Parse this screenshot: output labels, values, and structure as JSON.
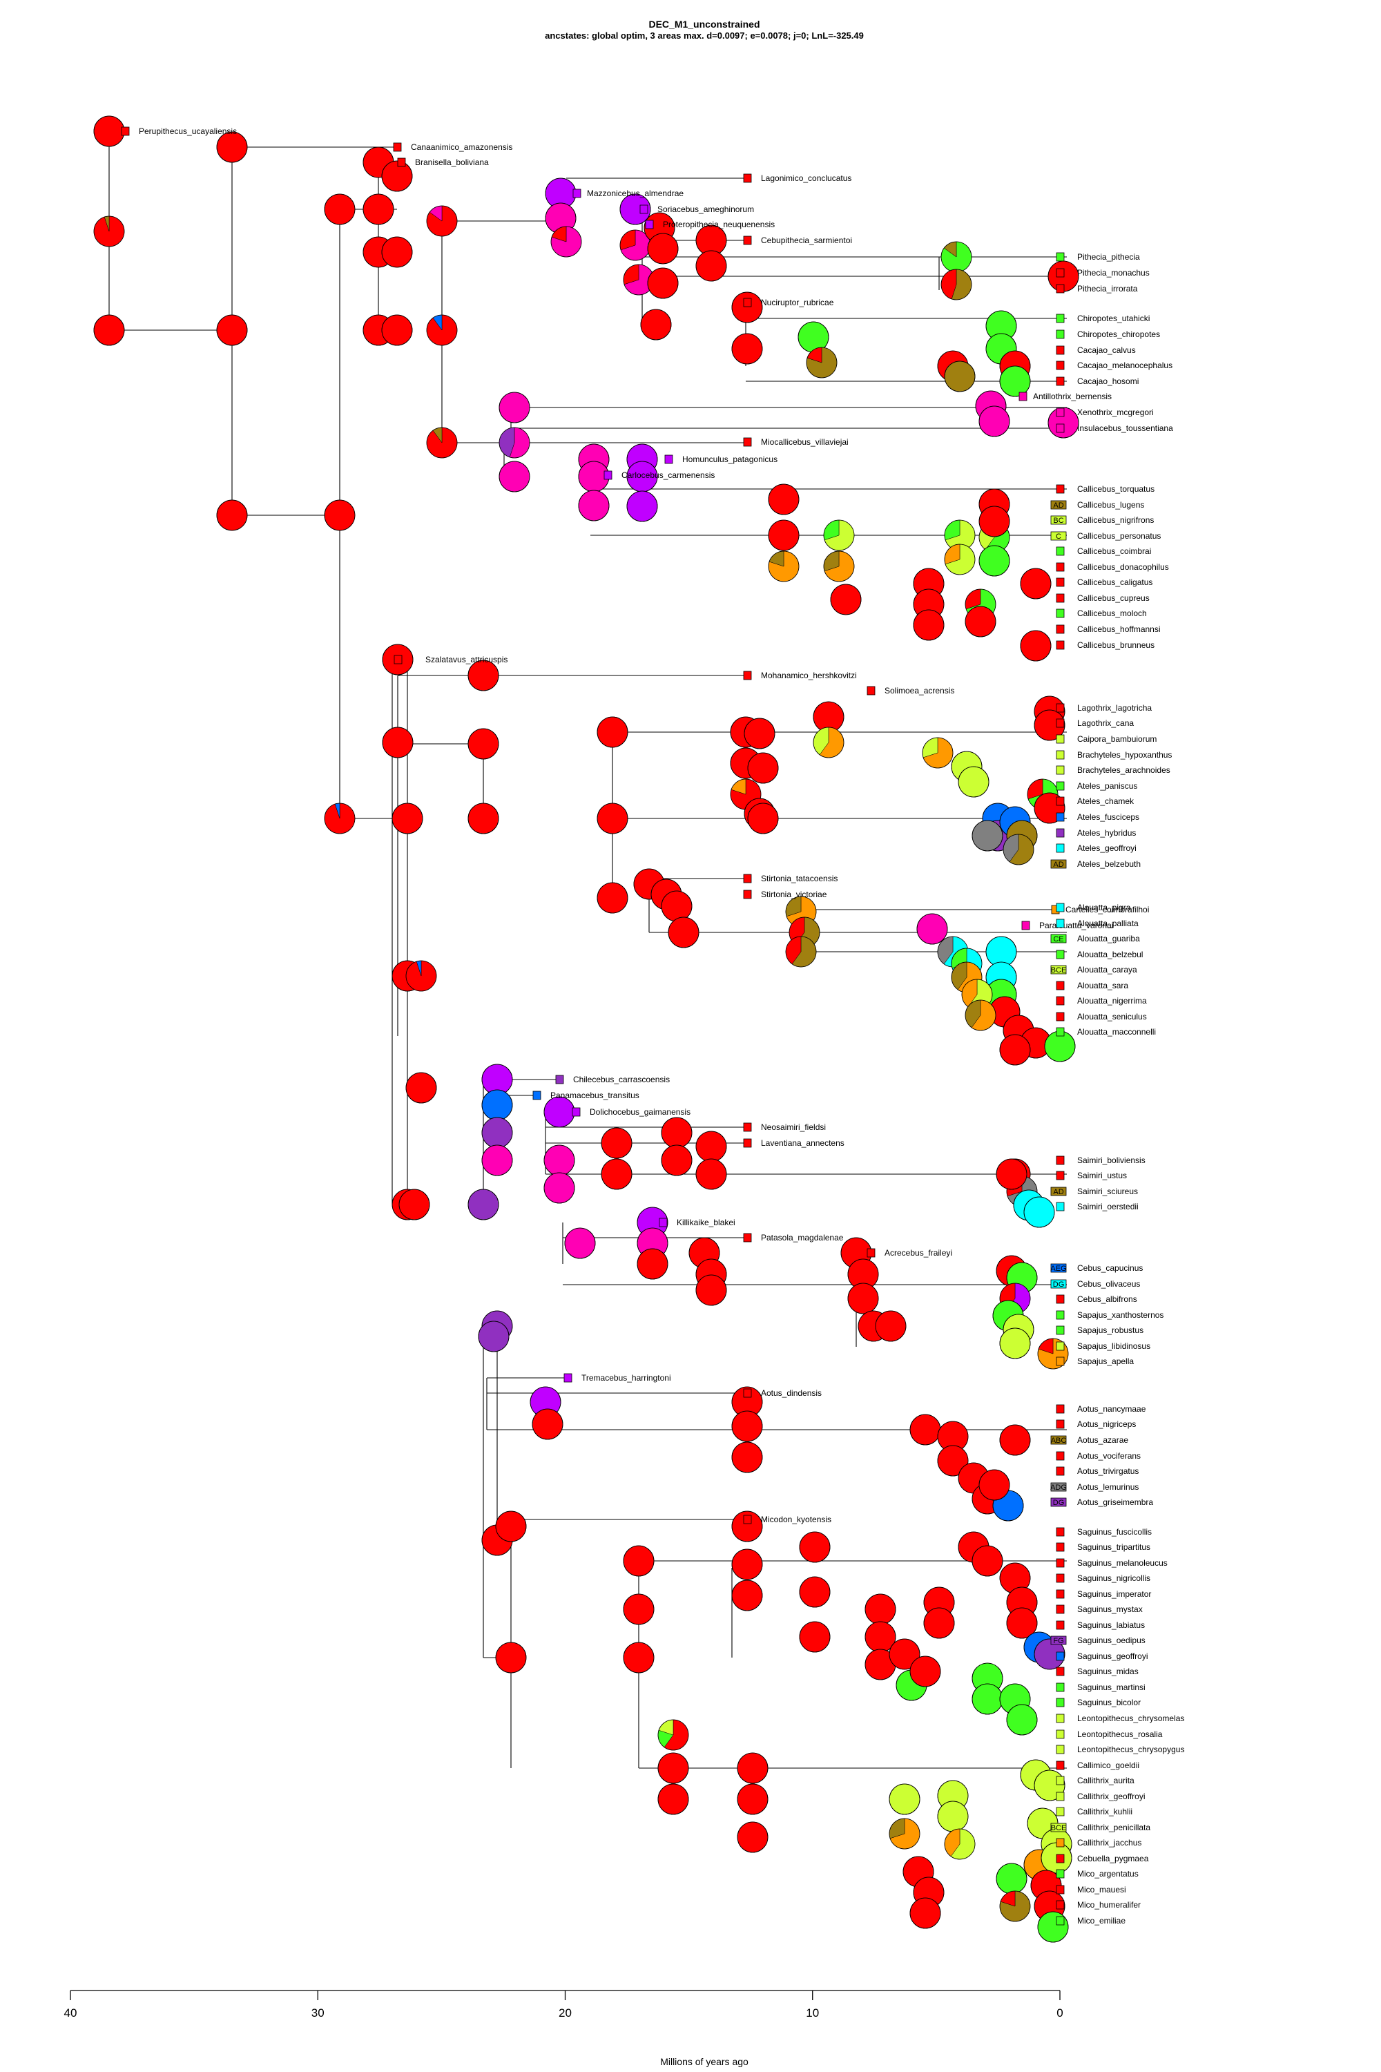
{
  "title": "DEC_M1_unconstrained",
  "subtitle": "ancstates: global optim, 3 areas max. d=0.0097; e=0.0078; j=0; LnL=-325.49",
  "axis": {
    "label": "Millions of years ago",
    "ticks": [
      40,
      30,
      20,
      10,
      0
    ]
  },
  "colors": {
    "red": "#ff0000",
    "magenta": "#ff00b4",
    "purple": "#c000ff",
    "green": "#40ff20",
    "lime": "#ccff33",
    "orange": "#ff9900",
    "olive": "#a08010",
    "blue": "#0070ff",
    "cyan": "#00ffff",
    "violet": "#9030c0",
    "grey": "#808080"
  },
  "fossils": [
    {
      "label": "Perupithecus_ucayaliensis",
      "color": "red"
    },
    {
      "label": "Canaanimico_amazonensis",
      "color": "red"
    },
    {
      "label": "Branisella_boliviana",
      "color": "red"
    },
    {
      "label": "Lagonimico_conclucatus",
      "color": "red"
    },
    {
      "label": "Mazzonicebus_almendrae",
      "color": "purple"
    },
    {
      "label": "Soriacebus_ameghinorum",
      "color": "purple"
    },
    {
      "label": "Proteropithecia_neuquenensis",
      "color": "purple"
    },
    {
      "label": "Cebupithecia_sarmientoi",
      "color": "red"
    },
    {
      "label": "Nuciruptor_rubricae",
      "color": "red"
    },
    {
      "label": "Antillothrix_bernensis",
      "color": "magenta"
    },
    {
      "label": "Miocallicebus_villaviejai",
      "color": "red"
    },
    {
      "label": "Homunculus_patagonicus",
      "color": "purple"
    },
    {
      "label": "Carlocebus_carmenensis",
      "color": "purple"
    },
    {
      "label": "Szalatavus_attricuspis",
      "color": "red"
    },
    {
      "label": "Mohanamico_hershkovitzi",
      "color": "red"
    },
    {
      "label": "Solimoea_acrensis",
      "color": "red"
    },
    {
      "label": "Stirtonia_tatacoensis",
      "color": "red"
    },
    {
      "label": "Stirtonia_victoriae",
      "color": "red"
    },
    {
      "label": "Cartelles_coimbrafilhoi",
      "color": "orange"
    },
    {
      "label": "Paralouatta_varonai",
      "color": "magenta"
    },
    {
      "label": "Chilecebus_carrascoensis",
      "color": "violet"
    },
    {
      "label": "Panamacebus_transitus",
      "color": "blue"
    },
    {
      "label": "Dolichocebus_gaimanensis",
      "color": "purple"
    },
    {
      "label": "Neosaimiri_fieldsi",
      "color": "red"
    },
    {
      "label": "Laventiana_annectens",
      "color": "red"
    },
    {
      "label": "Killikaike_blakei",
      "color": "purple"
    },
    {
      "label": "Patasola_magdalenae",
      "color": "red"
    },
    {
      "label": "Acrecebus_fraileyi",
      "color": "red"
    },
    {
      "label": "Tremacebus_harringtoni",
      "color": "purple"
    },
    {
      "label": "Aotus_dindensis",
      "color": "red"
    },
    {
      "label": "Micodon_kyotensis",
      "color": "red"
    }
  ],
  "tips": [
    {
      "label": "Pithecia_pithecia",
      "color": "green",
      "area": ""
    },
    {
      "label": "Pithecia_monachus",
      "color": "red",
      "area": ""
    },
    {
      "label": "Pithecia_irrorata",
      "color": "red",
      "area": ""
    },
    {
      "label": "Chiropotes_utahicki",
      "color": "green",
      "area": ""
    },
    {
      "label": "Chiropotes_chiropotes",
      "color": "green",
      "area": ""
    },
    {
      "label": "Cacajao_calvus",
      "color": "red",
      "area": ""
    },
    {
      "label": "Cacajao_melanocephalus",
      "color": "red",
      "area": ""
    },
    {
      "label": "Cacajao_hosomi",
      "color": "red",
      "area": ""
    },
    {
      "label": "Xenothrix_mcgregori",
      "color": "magenta",
      "area": ""
    },
    {
      "label": "Insulacebus_toussentiana",
      "color": "magenta",
      "area": ""
    },
    {
      "label": "Callicebus_torquatus",
      "color": "red",
      "area": ""
    },
    {
      "label": "Callicebus_lugens",
      "color": "olive",
      "area": "AD"
    },
    {
      "label": "Callicebus_nigrifrons",
      "color": "lime",
      "area": "BC"
    },
    {
      "label": "Callicebus_personatus",
      "color": "lime",
      "area": "C"
    },
    {
      "label": "Callicebus_coimbrai",
      "color": "green",
      "area": ""
    },
    {
      "label": "Callicebus_donacophilus",
      "color": "red",
      "area": ""
    },
    {
      "label": "Callicebus_caligatus",
      "color": "red",
      "area": ""
    },
    {
      "label": "Callicebus_cupreus",
      "color": "red",
      "area": ""
    },
    {
      "label": "Callicebus_moloch",
      "color": "green",
      "area": ""
    },
    {
      "label": "Callicebus_hoffmannsi",
      "color": "red",
      "area": ""
    },
    {
      "label": "Callicebus_brunneus",
      "color": "red",
      "area": ""
    },
    {
      "label": "Lagothrix_lagotricha",
      "color": "red",
      "area": ""
    },
    {
      "label": "Lagothrix_cana",
      "color": "red",
      "area": ""
    },
    {
      "label": "Caipora_bambuiorum",
      "color": "lime",
      "area": ""
    },
    {
      "label": "Brachyteles_hypoxanthus",
      "color": "lime",
      "area": ""
    },
    {
      "label": "Brachyteles_arachnoides",
      "color": "lime",
      "area": ""
    },
    {
      "label": "Ateles_paniscus",
      "color": "green",
      "area": ""
    },
    {
      "label": "Ateles_chamek",
      "color": "red",
      "area": ""
    },
    {
      "label": "Ateles_fusciceps",
      "color": "blue",
      "area": ""
    },
    {
      "label": "Ateles_hybridus",
      "color": "violet",
      "area": ""
    },
    {
      "label": "Ateles_geoffroyi",
      "color": "cyan",
      "area": ""
    },
    {
      "label": "Ateles_belzebuth",
      "color": "olive",
      "area": "AD"
    },
    {
      "label": "Alouatta_pigra",
      "color": "cyan",
      "area": ""
    },
    {
      "label": "Alouatta_palliata",
      "color": "cyan",
      "area": ""
    },
    {
      "label": "Alouatta_guariba",
      "color": "green",
      "area": "CE"
    },
    {
      "label": "Alouatta_belzebul",
      "color": "green",
      "area": ""
    },
    {
      "label": "Alouatta_caraya",
      "color": "lime",
      "area": "BCE"
    },
    {
      "label": "Alouatta_sara",
      "color": "red",
      "area": ""
    },
    {
      "label": "Alouatta_nigerrima",
      "color": "red",
      "area": ""
    },
    {
      "label": "Alouatta_seniculus",
      "color": "red",
      "area": ""
    },
    {
      "label": "Alouatta_macconnelli",
      "color": "green",
      "area": ""
    },
    {
      "label": "Saimiri_boliviensis",
      "color": "red",
      "area": ""
    },
    {
      "label": "Saimiri_ustus",
      "color": "red",
      "area": ""
    },
    {
      "label": "Saimiri_sciureus",
      "color": "olive",
      "area": "AD"
    },
    {
      "label": "Saimiri_oerstedii",
      "color": "cyan",
      "area": ""
    },
    {
      "label": "Cebus_capucinus",
      "color": "blue",
      "area": "AEG"
    },
    {
      "label": "Cebus_olivaceus",
      "color": "cyan",
      "area": "DG"
    },
    {
      "label": "Cebus_albifrons",
      "color": "red",
      "area": ""
    },
    {
      "label": "Sapajus_xanthosternos",
      "color": "green",
      "area": ""
    },
    {
      "label": "Sapajus_robustus",
      "color": "green",
      "area": ""
    },
    {
      "label": "Sapajus_libidinosus",
      "color": "lime",
      "area": ""
    },
    {
      "label": "Sapajus_apella",
      "color": "orange",
      "area": ""
    },
    {
      "label": "Aotus_nancymaae",
      "color": "red",
      "area": ""
    },
    {
      "label": "Aotus_nigriceps",
      "color": "red",
      "area": ""
    },
    {
      "label": "Aotus_azarae",
      "color": "olive",
      "area": "ABC"
    },
    {
      "label": "Aotus_vociferans",
      "color": "red",
      "area": ""
    },
    {
      "label": "Aotus_trivirgatus",
      "color": "red",
      "area": ""
    },
    {
      "label": "Aotus_lemurinus",
      "color": "grey",
      "area": "ADG"
    },
    {
      "label": "Aotus_griseimembra",
      "color": "violet",
      "area": "DG"
    },
    {
      "label": "Saguinus_fuscicollis",
      "color": "red",
      "area": ""
    },
    {
      "label": "Saguinus_tripartitus",
      "color": "red",
      "area": ""
    },
    {
      "label": "Saguinus_melanoleucus",
      "color": "red",
      "area": ""
    },
    {
      "label": "Saguinus_nigricollis",
      "color": "red",
      "area": ""
    },
    {
      "label": "Saguinus_imperator",
      "color": "red",
      "area": ""
    },
    {
      "label": "Saguinus_mystax",
      "color": "red",
      "area": ""
    },
    {
      "label": "Saguinus_labiatus",
      "color": "red",
      "area": ""
    },
    {
      "label": "Saguinus_oedipus",
      "color": "violet",
      "area": "FG"
    },
    {
      "label": "Saguinus_geoffroyi",
      "color": "blue",
      "area": ""
    },
    {
      "label": "Saguinus_midas",
      "color": "red",
      "area": ""
    },
    {
      "label": "Saguinus_martinsi",
      "color": "green",
      "area": ""
    },
    {
      "label": "Saguinus_bicolor",
      "color": "green",
      "area": ""
    },
    {
      "label": "Leontopithecus_chrysomelas",
      "color": "lime",
      "area": ""
    },
    {
      "label": "Leontopithecus_rosalia",
      "color": "lime",
      "area": ""
    },
    {
      "label": "Leontopithecus_chrysopygus",
      "color": "lime",
      "area": ""
    },
    {
      "label": "Callimico_goeldii",
      "color": "red",
      "area": ""
    },
    {
      "label": "Callithrix_aurita",
      "color": "lime",
      "area": ""
    },
    {
      "label": "Callithrix_geoffroyi",
      "color": "lime",
      "area": ""
    },
    {
      "label": "Callithrix_kuhlii",
      "color": "lime",
      "area": ""
    },
    {
      "label": "Callithrix_penicillata",
      "color": "lime",
      "area": "BCE"
    },
    {
      "label": "Callithrix_jacchus",
      "color": "orange",
      "area": ""
    },
    {
      "label": "Cebuella_pygmaea",
      "color": "red",
      "area": ""
    },
    {
      "label": "Mico_argentatus",
      "color": "green",
      "area": ""
    },
    {
      "label": "Mico_mauesi",
      "color": "red",
      "area": ""
    },
    {
      "label": "Mico_humeralifer",
      "color": "red",
      "area": ""
    },
    {
      "label": "Mico_emiliae",
      "color": "green",
      "area": ""
    }
  ]
}
